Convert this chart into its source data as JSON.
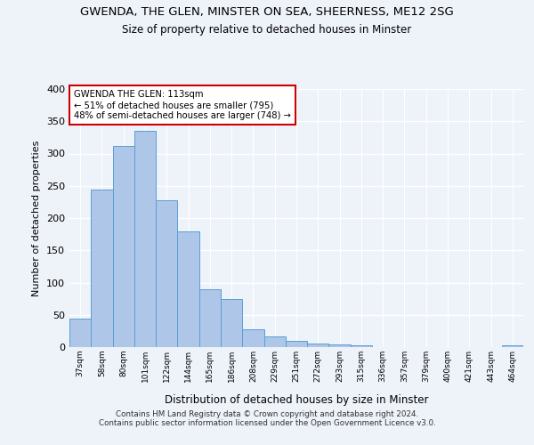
{
  "title1": "GWENDA, THE GLEN, MINSTER ON SEA, SHEERNESS, ME12 2SG",
  "title2": "Size of property relative to detached houses in Minster",
  "xlabel": "Distribution of detached houses by size in Minster",
  "ylabel": "Number of detached properties",
  "categories": [
    "37sqm",
    "58sqm",
    "80sqm",
    "101sqm",
    "122sqm",
    "144sqm",
    "165sqm",
    "186sqm",
    "208sqm",
    "229sqm",
    "251sqm",
    "272sqm",
    "293sqm",
    "315sqm",
    "336sqm",
    "357sqm",
    "379sqm",
    "400sqm",
    "421sqm",
    "443sqm",
    "464sqm"
  ],
  "bar_values": [
    44,
    244,
    312,
    335,
    228,
    180,
    89,
    74,
    28,
    17,
    9,
    5,
    4,
    3,
    0,
    0,
    0,
    0,
    0,
    0,
    3
  ],
  "bar_color": "#aec6e8",
  "bar_edge_color": "#5a9fd4",
  "annotation_title": "GWENDA THE GLEN: 113sqm",
  "annotation_line2": "← 51% of detached houses are smaller (795)",
  "annotation_line3": "48% of semi-detached houses are larger (748) →",
  "annotation_box_color": "#ffffff",
  "annotation_box_edge": "#cc0000",
  "ylim": [
    0,
    400
  ],
  "yticks": [
    0,
    50,
    100,
    150,
    200,
    250,
    300,
    350,
    400
  ],
  "footer1": "Contains HM Land Registry data © Crown copyright and database right 2024.",
  "footer2": "Contains public sector information licensed under the Open Government Licence v3.0.",
  "background_color": "#eef2f9",
  "grid_color": "#ffffff"
}
